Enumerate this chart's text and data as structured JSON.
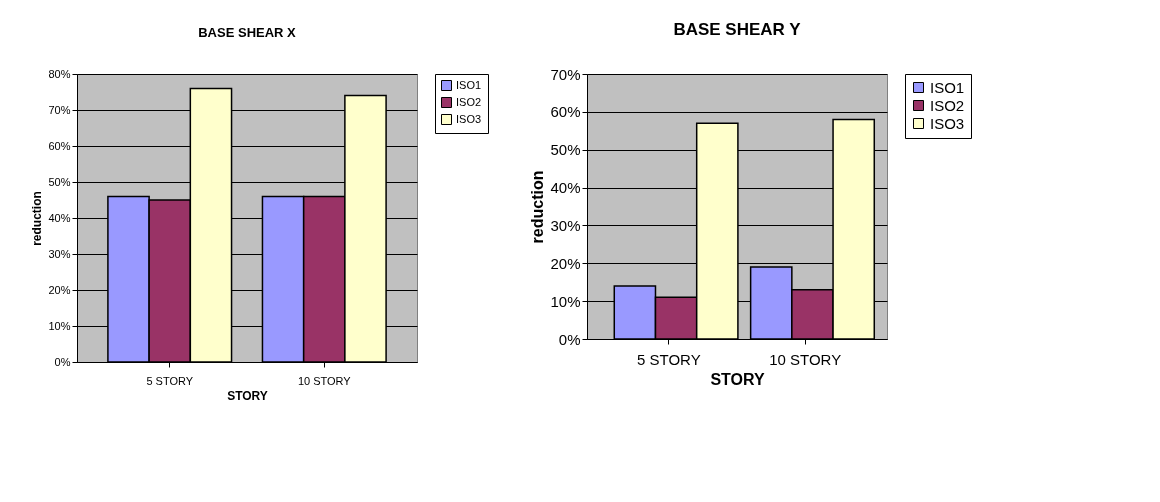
{
  "chart_data": [
    {
      "type": "bar",
      "title": "BASE SHEAR X",
      "xlabel": "STORY",
      "ylabel": "reduction",
      "categories": [
        "5 STORY",
        "10 STORY"
      ],
      "series": [
        {
          "name": "ISO1",
          "color": "#9999ff",
          "values": [
            46,
            46
          ]
        },
        {
          "name": "ISO2",
          "color": "#993366",
          "values": [
            45,
            46
          ]
        },
        {
          "name": "ISO3",
          "color": "#ffffcc",
          "values": [
            76,
            74
          ]
        }
      ],
      "ylim": [
        0,
        80
      ],
      "yticks": [
        {
          "value": 0,
          "label": "0%"
        },
        {
          "value": 10,
          "label": "10%"
        },
        {
          "value": 20,
          "label": "20%"
        },
        {
          "value": 30,
          "label": "30%"
        },
        {
          "value": 40,
          "label": "40%"
        },
        {
          "value": 50,
          "label": "50%"
        },
        {
          "value": 60,
          "label": "60%"
        },
        {
          "value": 70,
          "label": "70%"
        },
        {
          "value": 80,
          "label": "80%"
        }
      ],
      "grid": "y",
      "legend": "right"
    },
    {
      "type": "bar",
      "title": "BASE SHEAR Y",
      "xlabel": "STORY",
      "ylabel": "reduction",
      "categories": [
        "5 STORY",
        "10 STORY"
      ],
      "series": [
        {
          "name": "ISO1",
          "color": "#9999ff",
          "values": [
            14,
            19
          ]
        },
        {
          "name": "ISO2",
          "color": "#993366",
          "values": [
            11,
            13
          ]
        },
        {
          "name": "ISO3",
          "color": "#ffffcc",
          "values": [
            57,
            58
          ]
        }
      ],
      "ylim": [
        0,
        70
      ],
      "yticks": [
        {
          "value": 0,
          "label": "0%"
        },
        {
          "value": 10,
          "label": "10%"
        },
        {
          "value": 20,
          "label": "20%"
        },
        {
          "value": 30,
          "label": "30%"
        },
        {
          "value": 40,
          "label": "40%"
        },
        {
          "value": 50,
          "label": "50%"
        },
        {
          "value": 60,
          "label": "60%"
        },
        {
          "value": 70,
          "label": "70%"
        }
      ],
      "grid": "y",
      "legend": "right"
    }
  ]
}
